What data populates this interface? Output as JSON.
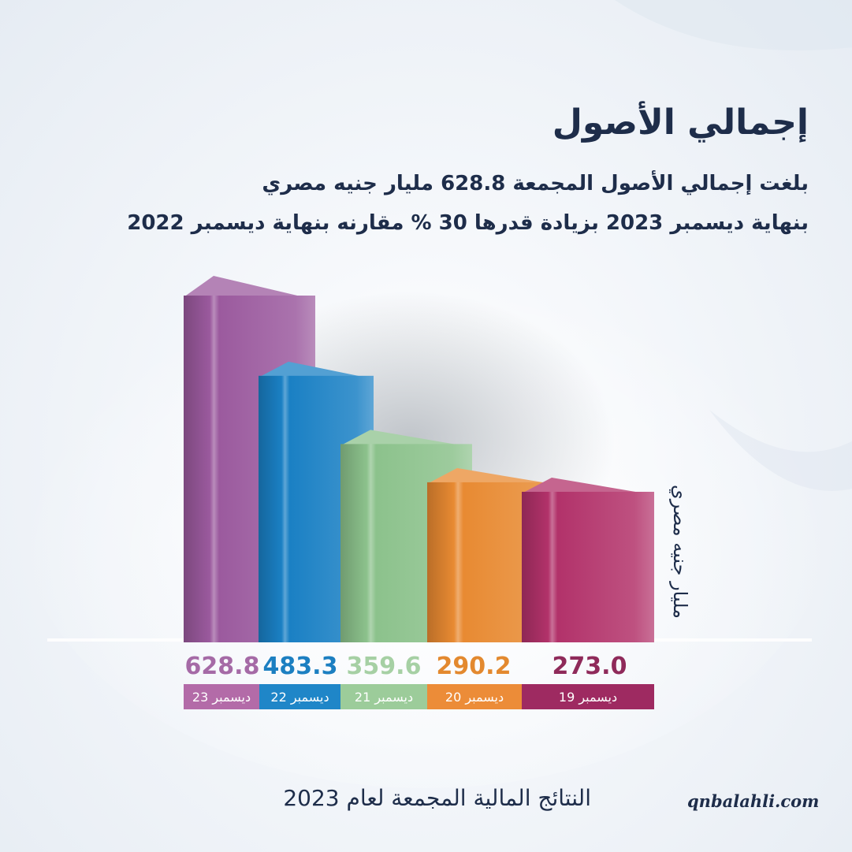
{
  "title": "إجمالي الأصول",
  "subtitle_line1": "بلغت إجمالي الأصول المجمعة 628.8 مليار جنيه مصري",
  "subtitle_line2": "بنهاية ديسمبر 2023 بزيادة قدرها 30 % مقارنه بنهاية ديسمبر 2022",
  "footer": {
    "title": "النتائج المالية المجمعة لعام 2023",
    "website": "qnbalahli.com"
  },
  "chart_data": {
    "type": "bar",
    "ylabel": "مليار جنيه مصري",
    "categories": [
      "ديسمبر 23",
      "ديسمبر 22",
      "ديسمبر 21",
      "ديسمبر 20",
      "ديسمبر 19"
    ],
    "values": [
      628.8,
      483.3,
      359.6,
      290.2,
      273.0
    ],
    "value_labels": [
      "628.8",
      "483.3",
      "359.6",
      "290.2",
      "273.0"
    ],
    "colors": [
      "#9b5a9e",
      "#1a80c4",
      "#8cc28c",
      "#e88a32",
      "#b2326a"
    ],
    "label_band_colors": [
      "#b36ba8",
      "#1f86c8",
      "#9ccc9a",
      "#ec8c38",
      "#9e2a61"
    ],
    "value_text_colors": [
      "#a56aa6",
      "#1c7fc1",
      "#a6d0a4",
      "#e3892f",
      "#8f2a5a"
    ]
  }
}
